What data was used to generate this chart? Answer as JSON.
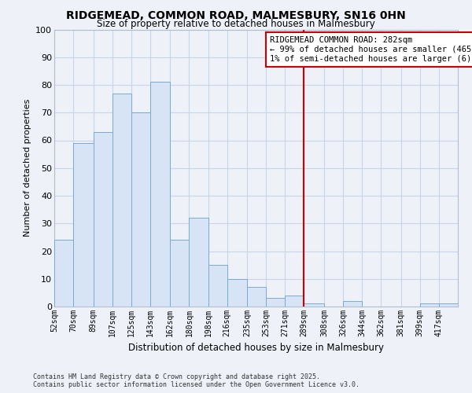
{
  "title": "RIDGEMEAD, COMMON ROAD, MALMESBURY, SN16 0HN",
  "subtitle": "Size of property relative to detached houses in Malmesbury",
  "xlabel": "Distribution of detached houses by size in Malmesbury",
  "ylabel": "Number of detached properties",
  "bar_color": "#d6e4f5",
  "bar_edge_color": "#7aaad0",
  "grid_color": "#c8d4e8",
  "background_color": "#eef1f8",
  "vline_x": 289,
  "vline_color": "#cc0000",
  "categories": [
    "52sqm",
    "70sqm",
    "89sqm",
    "107sqm",
    "125sqm",
    "143sqm",
    "162sqm",
    "180sqm",
    "198sqm",
    "216sqm",
    "235sqm",
    "253sqm",
    "271sqm",
    "289sqm",
    "308sqm",
    "326sqm",
    "344sqm",
    "362sqm",
    "381sqm",
    "399sqm",
    "417sqm"
  ],
  "bin_edges": [
    52,
    70,
    89,
    107,
    125,
    143,
    162,
    180,
    198,
    216,
    235,
    253,
    271,
    289,
    308,
    326,
    344,
    362,
    381,
    399,
    417,
    435
  ],
  "values": [
    24,
    59,
    63,
    77,
    70,
    81,
    24,
    32,
    15,
    10,
    7,
    3,
    4,
    1,
    0,
    2,
    0,
    0,
    0,
    1,
    1
  ],
  "ylim": [
    0,
    100
  ],
  "yticks": [
    0,
    10,
    20,
    30,
    40,
    50,
    60,
    70,
    80,
    90,
    100
  ],
  "annotation_title": "RIDGEMEAD COMMON ROAD: 282sqm",
  "annotation_line1": "← 99% of detached houses are smaller (465)",
  "annotation_line2": "1% of semi-detached houses are larger (6) →",
  "footnote1": "Contains HM Land Registry data © Crown copyright and database right 2025.",
  "footnote2": "Contains public sector information licensed under the Open Government Licence v3.0."
}
